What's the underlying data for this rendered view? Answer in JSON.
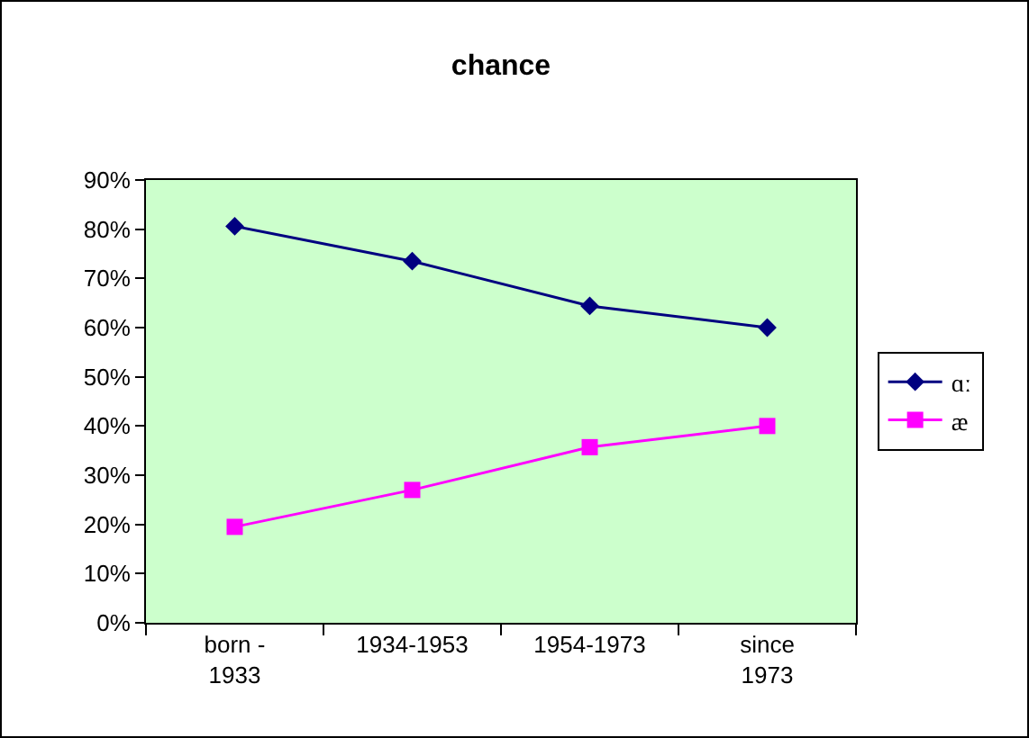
{
  "chart_data": {
    "type": "line",
    "title": "chance",
    "categories": [
      "born -\n1933",
      "1934-1953",
      "1954-1973",
      "since\n1973"
    ],
    "series": [
      {
        "name": "ɑː",
        "color": "#000080",
        "values": [
          80.6,
          73.5,
          64.4,
          60
        ],
        "marker": "diamond"
      },
      {
        "name": "æ",
        "color": "#ff00ff",
        "values": [
          19.5,
          27,
          35.7,
          40
        ],
        "marker": "square"
      }
    ],
    "ylim": [
      0,
      90
    ],
    "yticks": [
      {
        "value": 0,
        "label": "0%"
      },
      {
        "value": 10,
        "label": "10%"
      },
      {
        "value": 20,
        "label": "20%"
      },
      {
        "value": 30,
        "label": "30%"
      },
      {
        "value": 40,
        "label": "40%"
      },
      {
        "value": 50,
        "label": "50%"
      },
      {
        "value": 60,
        "label": "60%"
      },
      {
        "value": 70,
        "label": "70%"
      },
      {
        "value": 80,
        "label": "80%"
      },
      {
        "value": 90,
        "label": "90%"
      }
    ],
    "grid": false,
    "legend": "right"
  }
}
